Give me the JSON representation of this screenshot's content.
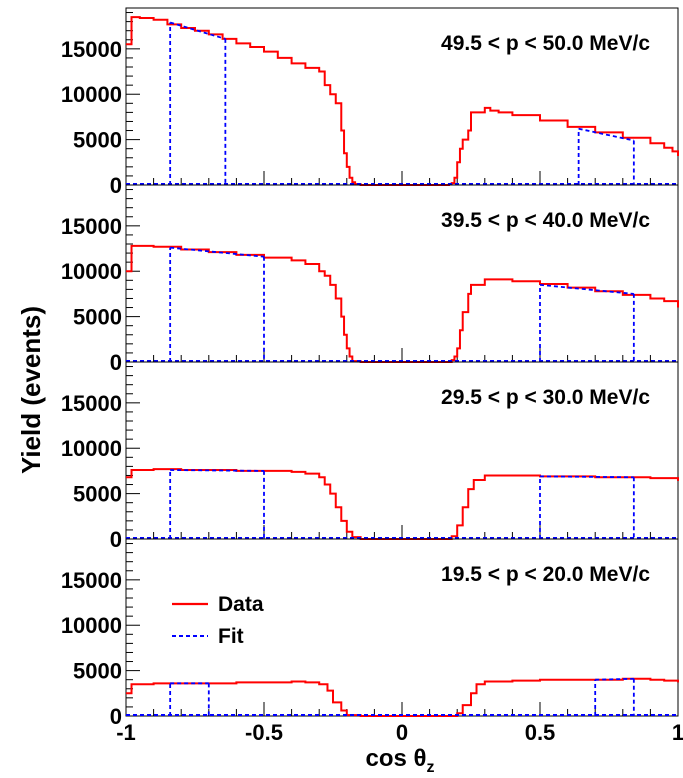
{
  "figure": {
    "ylabel": "Yield (events)",
    "xlabel_main": "cos θ",
    "xlabel_sub": "z"
  },
  "colors": {
    "data": "#ff0000",
    "fit": "#0000ff",
    "axis": "#000000"
  },
  "legend": {
    "data_label": "Data",
    "fit_label": "Fit",
    "placement": "bottom-panel-left"
  },
  "chart_data": [
    {
      "type": "line",
      "title": "49.5 < p < 50.0 MeV/c",
      "xlim": [
        -1,
        1
      ],
      "ylim": [
        0,
        19500
      ],
      "y_ticks": [
        0,
        5000,
        10000,
        15000
      ],
      "x_ticks": [
        -1,
        -0.5,
        0,
        0.5,
        1
      ],
      "x_tick_labels": [
        "-1",
        "-0.5",
        "0",
        "0.5",
        "1"
      ],
      "series": [
        {
          "name": "Data",
          "style": "step",
          "color": "#ff0000",
          "x": [
            -1.0,
            -0.98,
            -0.95,
            -0.9,
            -0.85,
            -0.8,
            -0.75,
            -0.7,
            -0.65,
            -0.6,
            -0.55,
            -0.5,
            -0.45,
            -0.4,
            -0.35,
            -0.3,
            -0.28,
            -0.26,
            -0.24,
            -0.22,
            -0.21,
            -0.2,
            -0.19,
            -0.18,
            -0.17,
            -0.15,
            0.0,
            0.15,
            0.17,
            0.18,
            0.19,
            0.2,
            0.21,
            0.22,
            0.24,
            0.25,
            0.3,
            0.32,
            0.35,
            0.4,
            0.5,
            0.6,
            0.7,
            0.8,
            0.9,
            0.95,
            0.98,
            1.0
          ],
          "y": [
            15500,
            18500,
            18400,
            18200,
            17700,
            17300,
            17000,
            16600,
            16100,
            15600,
            15200,
            14700,
            14000,
            13400,
            12900,
            12500,
            11000,
            10000,
            9000,
            6000,
            3500,
            2000,
            800,
            300,
            100,
            0,
            0,
            0,
            100,
            200,
            800,
            2500,
            4000,
            5000,
            6000,
            8000,
            8500,
            8200,
            8000,
            7700,
            7100,
            6400,
            5800,
            5200,
            4600,
            4100,
            3700,
            3200
          ]
        },
        {
          "name": "Fit",
          "style": "dashed",
          "color": "#0000ff",
          "segments": [
            {
              "x": [
                -0.84,
                -0.64
              ],
              "y": [
                17900,
                16100
              ]
            },
            {
              "x": [
                0.64,
                0.84
              ],
              "y": [
                6200,
                4900
              ]
            }
          ]
        }
      ]
    },
    {
      "type": "line",
      "title": "39.5 < p < 40.0 MeV/c",
      "xlim": [
        -1,
        1
      ],
      "ylim": [
        0,
        19500
      ],
      "y_ticks": [
        0,
        5000,
        10000,
        15000
      ],
      "x_ticks": [
        -1,
        -0.5,
        0,
        0.5,
        1
      ],
      "series": [
        {
          "name": "Data",
          "style": "step",
          "color": "#ff0000",
          "x": [
            -1.0,
            -0.98,
            -0.9,
            -0.8,
            -0.7,
            -0.6,
            -0.5,
            -0.4,
            -0.35,
            -0.3,
            -0.28,
            -0.26,
            -0.24,
            -0.22,
            -0.21,
            -0.2,
            -0.19,
            -0.18,
            -0.15,
            0.0,
            0.15,
            0.18,
            0.19,
            0.2,
            0.21,
            0.22,
            0.24,
            0.25,
            0.3,
            0.4,
            0.5,
            0.6,
            0.7,
            0.8,
            0.9,
            0.95,
            1.0
          ],
          "y": [
            10000,
            12800,
            12700,
            12400,
            12100,
            11800,
            11500,
            11200,
            10800,
            10000,
            9500,
            8500,
            7000,
            5000,
            3000,
            1500,
            600,
            100,
            0,
            0,
            0,
            200,
            600,
            1500,
            3500,
            5500,
            7500,
            8500,
            9100,
            8900,
            8600,
            8200,
            7800,
            7400,
            7000,
            6700,
            6000
          ]
        },
        {
          "name": "Fit",
          "style": "dashed",
          "color": "#0000ff",
          "segments": [
            {
              "x": [
                -0.84,
                -0.5
              ],
              "y": [
                12600,
                11600
              ]
            },
            {
              "x": [
                0.5,
                0.84
              ],
              "y": [
                8500,
                7500
              ]
            }
          ]
        }
      ]
    },
    {
      "type": "line",
      "title": "29.5 < p < 30.0 MeV/c",
      "xlim": [
        -1,
        1
      ],
      "ylim": [
        0,
        19500
      ],
      "y_ticks": [
        0,
        5000,
        10000,
        15000
      ],
      "x_ticks": [
        -1,
        -0.5,
        0,
        0.5,
        1
      ],
      "series": [
        {
          "name": "Data",
          "style": "step",
          "color": "#ff0000",
          "x": [
            -1.0,
            -0.98,
            -0.9,
            -0.8,
            -0.7,
            -0.6,
            -0.5,
            -0.4,
            -0.35,
            -0.3,
            -0.28,
            -0.26,
            -0.24,
            -0.22,
            -0.2,
            -0.18,
            -0.15,
            0.0,
            0.15,
            0.18,
            0.2,
            0.22,
            0.24,
            0.26,
            0.3,
            0.4,
            0.5,
            0.6,
            0.7,
            0.8,
            0.9,
            0.95,
            1.0
          ],
          "y": [
            6800,
            7600,
            7700,
            7600,
            7600,
            7500,
            7500,
            7400,
            7200,
            6800,
            6000,
            5000,
            3500,
            2000,
            800,
            200,
            0,
            0,
            0,
            300,
            1500,
            3500,
            5500,
            6500,
            7000,
            7000,
            6900,
            6900,
            6800,
            6800,
            6700,
            6700,
            6400
          ]
        },
        {
          "name": "Fit",
          "style": "dashed",
          "color": "#0000ff",
          "segments": [
            {
              "x": [
                -0.84,
                -0.5
              ],
              "y": [
                7600,
                7500
              ]
            },
            {
              "x": [
                0.5,
                0.84
              ],
              "y": [
                6900,
                6800
              ]
            }
          ]
        }
      ]
    },
    {
      "type": "line",
      "title": "19.5 < p < 20.0 MeV/c",
      "xlim": [
        -1,
        1
      ],
      "ylim": [
        0,
        19500
      ],
      "y_ticks": [
        0,
        5000,
        10000,
        15000
      ],
      "x_ticks": [
        -1,
        -0.5,
        0,
        0.5,
        1
      ],
      "x_tick_labels": [
        "-1",
        "-0.5",
        "0",
        "0.5",
        "1"
      ],
      "series": [
        {
          "name": "Data",
          "style": "step",
          "color": "#ff0000",
          "x": [
            -1.0,
            -0.98,
            -0.9,
            -0.8,
            -0.7,
            -0.6,
            -0.5,
            -0.4,
            -0.35,
            -0.3,
            -0.27,
            -0.25,
            -0.22,
            -0.2,
            -0.15,
            0.0,
            0.15,
            0.2,
            0.22,
            0.25,
            0.27,
            0.3,
            0.4,
            0.5,
            0.6,
            0.7,
            0.8,
            0.85,
            0.9,
            0.95,
            1.0
          ],
          "y": [
            2500,
            3500,
            3600,
            3600,
            3600,
            3700,
            3700,
            3800,
            3700,
            3500,
            2800,
            1500,
            600,
            100,
            0,
            0,
            0,
            300,
            1200,
            2500,
            3500,
            3800,
            3900,
            4000,
            4000,
            4000,
            4100,
            4100,
            4000,
            3900,
            3700
          ]
        },
        {
          "name": "Fit",
          "style": "dashed",
          "color": "#0000ff",
          "segments": [
            {
              "x": [
                -0.84,
                -0.7
              ],
              "y": [
                3600,
                3600
              ]
            },
            {
              "x": [
                0.7,
                0.84
              ],
              "y": [
                4000,
                4100
              ]
            }
          ]
        }
      ]
    }
  ]
}
